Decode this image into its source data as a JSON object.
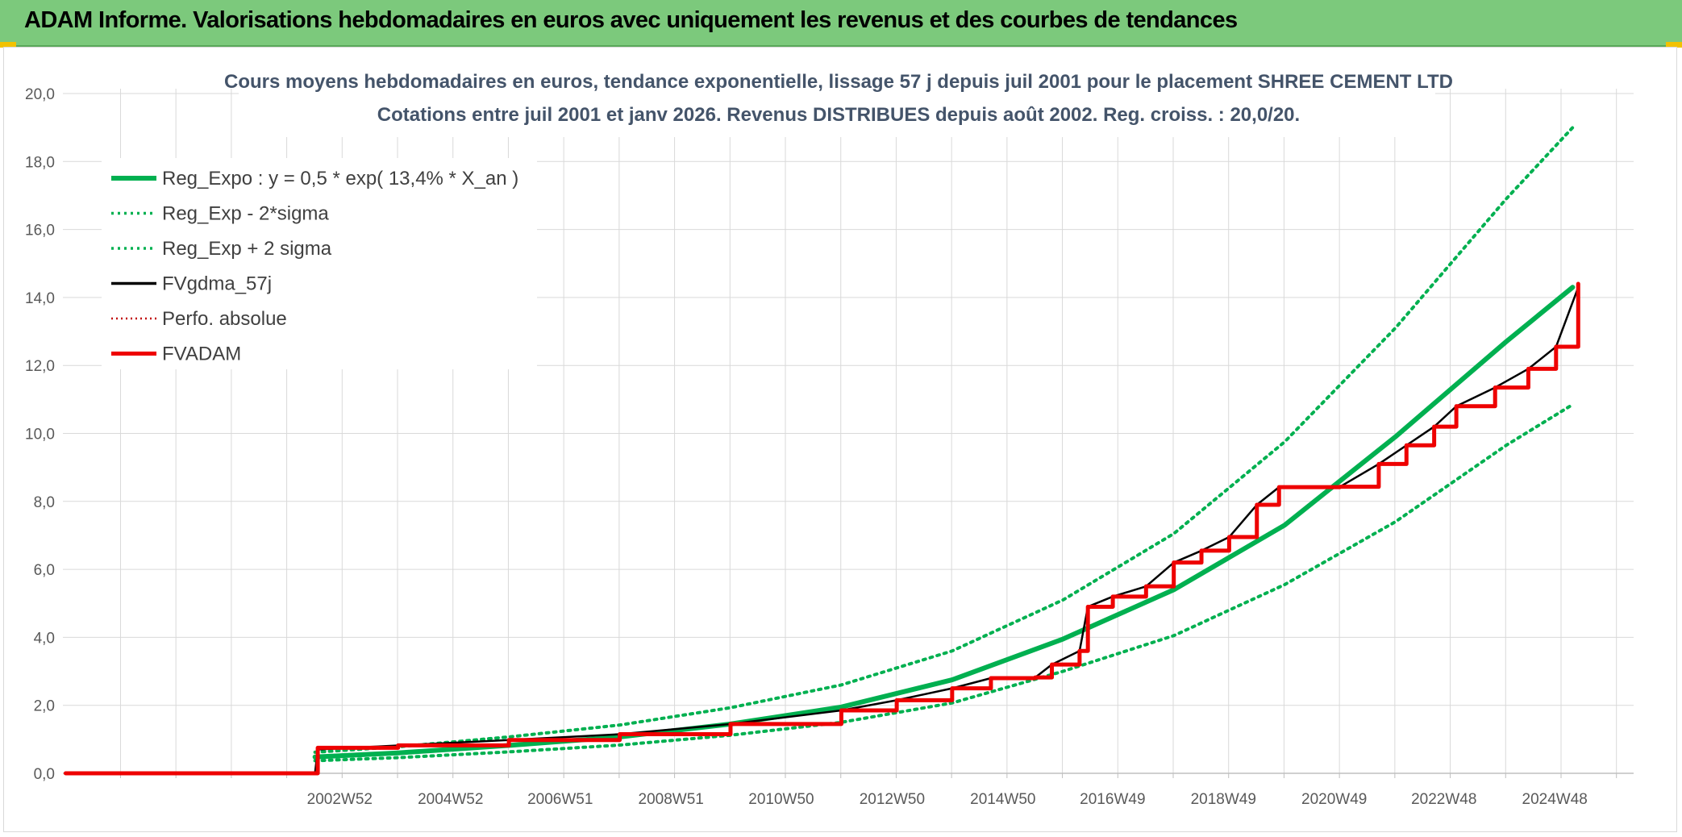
{
  "header": {
    "banner_title": "ADAM Informe. Valorisations hebdomadaires en euros avec uniquement les revenus et des courbes de tendances",
    "banner_color": "#7cc97c"
  },
  "chart_data": {
    "type": "line",
    "title": "Cours moyens hebdomadaires en euros, tendance exponentielle, lissage 57 j depuis juil 2001 pour le placement SHREE CEMENT LTD",
    "subtitle": "Cotations entre juil 2001 et janv 2026. Revenus DISTRIBUES depuis août 2002. Reg. croiss. : 20,0/20.",
    "xlabel": "",
    "ylabel": "",
    "ylim": [
      0,
      20
    ],
    "xlim": [
      1997.95,
      2026.3
    ],
    "y_ticks": [
      "0,0",
      "2,0",
      "4,0",
      "6,0",
      "8,0",
      "10,0",
      "12,0",
      "14,0",
      "16,0",
      "18,0",
      "20,0"
    ],
    "x_ticks": [
      {
        "label": "2002W52",
        "x": 2002.99
      },
      {
        "label": "2004W52",
        "x": 2004.99
      },
      {
        "label": "2006W51",
        "x": 2006.97
      },
      {
        "label": "2008W51",
        "x": 2008.97
      },
      {
        "label": "2010W50",
        "x": 2010.96
      },
      {
        "label": "2012W50",
        "x": 2012.96
      },
      {
        "label": "2014W50",
        "x": 2014.96
      },
      {
        "label": "2016W49",
        "x": 2016.94
      },
      {
        "label": "2018W49",
        "x": 2018.94
      },
      {
        "label": "2020W49",
        "x": 2020.94
      },
      {
        "label": "2022W48",
        "x": 2022.92
      },
      {
        "label": "2024W48",
        "x": 2024.92
      }
    ],
    "grid": true,
    "legend_position": "top-left",
    "series": [
      {
        "name": "Reg_Expo : y = 0,5 * exp( 13,4% *  X_an )",
        "color": "#00b050",
        "style": "solid-thick",
        "x": [
          2002.5,
          2004,
          2006,
          2008,
          2010,
          2012,
          2014,
          2016,
          2018,
          2020,
          2022,
          2024,
          2025.2
        ],
        "values": [
          0.48,
          0.6,
          0.82,
          1.07,
          1.45,
          1.95,
          2.75,
          3.95,
          5.4,
          7.3,
          9.9,
          12.7,
          14.3
        ]
      },
      {
        "name": "Reg_Exp - 2*sigma",
        "color": "#00b050",
        "style": "dotted",
        "x": [
          2002.5,
          2004,
          2006,
          2008,
          2010,
          2012,
          2014,
          2016,
          2018,
          2020,
          2022,
          2024,
          2025.2
        ],
        "values": [
          0.37,
          0.46,
          0.63,
          0.83,
          1.12,
          1.5,
          2.07,
          3.0,
          4.05,
          5.55,
          7.4,
          9.65,
          10.85
        ]
      },
      {
        "name": "Reg_Exp + 2 sigma",
        "color": "#00b050",
        "style": "dotted",
        "x": [
          2002.5,
          2004,
          2006,
          2008,
          2010,
          2012,
          2014,
          2016,
          2018,
          2020,
          2022,
          2024,
          2025.2
        ],
        "values": [
          0.62,
          0.78,
          1.07,
          1.42,
          1.93,
          2.6,
          3.6,
          5.1,
          7.05,
          9.75,
          13.1,
          16.9,
          19.0
        ]
      },
      {
        "name": "FVgdma_57j",
        "color": "#000000",
        "style": "solid",
        "x": [
          1998.0,
          2002.5,
          2002.55,
          2004,
          2006,
          2008,
          2010,
          2012,
          2013,
          2014,
          2014.7,
          2015.5,
          2015.8,
          2016.3,
          2016.45,
          2016.9,
          2017.5,
          2018.0,
          2018.5,
          2019.0,
          2019.5,
          2019.9,
          2021.0,
          2021.7,
          2022.2,
          2022.7,
          2023.1,
          2023.8,
          2024.4,
          2024.9,
          2025.3
        ],
        "values": [
          0.0,
          0.0,
          0.7,
          0.82,
          0.98,
          1.15,
          1.45,
          1.85,
          2.15,
          2.5,
          2.8,
          2.82,
          3.2,
          3.6,
          4.9,
          5.2,
          5.5,
          6.2,
          6.55,
          6.95,
          7.9,
          8.42,
          8.43,
          9.1,
          9.65,
          10.2,
          10.8,
          11.35,
          11.9,
          12.55,
          14.3
        ]
      },
      {
        "name": "Perfo. absolue",
        "color": "#c00000",
        "style": "dotted",
        "x": [],
        "values": []
      },
      {
        "name": "FVADAM",
        "color": "#ee0000",
        "style": "step",
        "x": [
          1998.0,
          2002.5,
          2002.55,
          2004,
          2006,
          2008,
          2010,
          2012,
          2013,
          2014,
          2014.7,
          2015.5,
          2015.8,
          2016.3,
          2016.45,
          2016.9,
          2017.5,
          2018.0,
          2018.5,
          2019.0,
          2019.5,
          2019.9,
          2021.0,
          2021.7,
          2022.2,
          2022.7,
          2023.1,
          2023.8,
          2024.4,
          2024.9,
          2025.3
        ],
        "values": [
          0.0,
          0.0,
          0.75,
          0.82,
          0.98,
          1.15,
          1.45,
          1.85,
          2.15,
          2.5,
          2.8,
          2.82,
          3.2,
          3.6,
          4.9,
          5.2,
          5.5,
          6.2,
          6.55,
          6.95,
          7.9,
          8.42,
          8.43,
          9.1,
          9.65,
          10.2,
          10.8,
          11.35,
          11.9,
          12.55,
          14.4
        ]
      }
    ]
  }
}
